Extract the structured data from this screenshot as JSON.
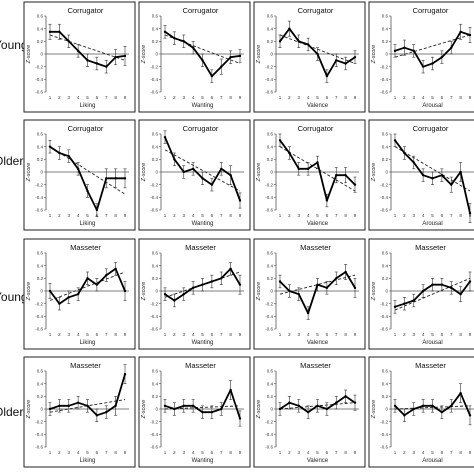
{
  "row_labels": [
    "Young",
    "Older",
    "Young",
    "Older"
  ],
  "chart_data": [
    {
      "type": "line",
      "title": "Corrugator",
      "xlabel": "Liking",
      "ylabel": "Z-score",
      "categories": [
        1,
        2,
        3,
        4,
        5,
        6,
        7,
        8,
        9
      ],
      "yticks": [
        "0.6",
        "0.4",
        "0.2",
        "0",
        "-0.2",
        "-0.4",
        "-0.6"
      ],
      "ylim": [
        -0.6,
        0.6
      ],
      "values": [
        0.35,
        0.35,
        0.2,
        0.05,
        -0.1,
        -0.15,
        -0.2,
        -0.05,
        -0.03
      ],
      "errors": [
        0.12,
        0.12,
        0.1,
        0.1,
        0.1,
        0.1,
        0.1,
        0.12,
        0.15
      ],
      "trend": [
        0.3,
        -0.1
      ]
    },
    {
      "type": "line",
      "title": "Corrugator",
      "xlabel": "Wanting",
      "ylabel": "Z-score",
      "categories": [
        1,
        2,
        3,
        4,
        5,
        6,
        7,
        8,
        9
      ],
      "yticks": [
        "0.6",
        "0.4",
        "0.2",
        "0",
        "-0.2",
        "-0.4",
        "-0.6"
      ],
      "ylim": [
        -0.6,
        0.6
      ],
      "values": [
        0.35,
        0.25,
        0.2,
        0.1,
        -0.1,
        -0.35,
        -0.2,
        -0.05,
        -0.03
      ],
      "errors": [
        0.1,
        0.1,
        0.1,
        0.1,
        0.1,
        0.1,
        0.12,
        0.1,
        0.1
      ],
      "trend": [
        0.3,
        -0.15
      ]
    },
    {
      "type": "line",
      "title": "Corrugator",
      "xlabel": "Valence",
      "ylabel": "Z-score",
      "categories": [
        1,
        2,
        3,
        4,
        5,
        6,
        7,
        8,
        9
      ],
      "yticks": [
        "0.6",
        "0.4",
        "0.2",
        "0",
        "-0.2",
        "-0.4",
        "-0.6"
      ],
      "ylim": [
        -0.6,
        0.6
      ],
      "values": [
        0.2,
        0.4,
        0.2,
        0.15,
        0.0,
        -0.35,
        -0.1,
        -0.15,
        -0.05
      ],
      "errors": [
        0.1,
        0.12,
        0.1,
        0.1,
        0.1,
        0.1,
        0.1,
        0.1,
        0.1
      ],
      "trend": [
        0.3,
        -0.15
      ]
    },
    {
      "type": "line",
      "title": "Corrugator",
      "xlabel": "Arousal",
      "ylabel": "Z-score",
      "categories": [
        1,
        2,
        3,
        4,
        5,
        6,
        7,
        8,
        9
      ],
      "yticks": [
        "0.6",
        "0.4",
        "0.2",
        "0",
        "-0.2",
        "-0.4",
        "-0.6"
      ],
      "ylim": [
        -0.6,
        0.6
      ],
      "values": [
        0.05,
        0.1,
        0.05,
        -0.2,
        -0.15,
        -0.05,
        0.1,
        0.35,
        0.3
      ],
      "errors": [
        0.1,
        0.12,
        0.1,
        0.1,
        0.1,
        0.1,
        0.1,
        0.12,
        0.12
      ],
      "trend": [
        -0.05,
        0.3
      ]
    },
    {
      "type": "line",
      "title": "Corrugator",
      "xlabel": "Liking",
      "ylabel": "Z-score",
      "categories": [
        1,
        2,
        3,
        4,
        5,
        6,
        7,
        8,
        9
      ],
      "yticks": [
        "0.6",
        "0.4",
        "0.2",
        "0",
        "-0.2",
        "-0.4",
        "-0.6"
      ],
      "ylim": [
        -0.6,
        0.6
      ],
      "values": [
        0.4,
        0.3,
        0.25,
        0.05,
        -0.3,
        -0.6,
        -0.1,
        -0.1,
        -0.1
      ],
      "errors": [
        0.1,
        0.1,
        0.1,
        0.1,
        0.1,
        0.1,
        0.15,
        0.15,
        0.15
      ],
      "trend": [
        0.4,
        -0.35
      ]
    },
    {
      "type": "line",
      "title": "Corrugator",
      "xlabel": "Wanting",
      "ylabel": "Z-score",
      "categories": [
        1,
        2,
        3,
        4,
        5,
        6,
        7,
        8,
        9
      ],
      "yticks": [
        "0.6",
        "0.4",
        "0.2",
        "0",
        "-0.2",
        "-0.4",
        "-0.6"
      ],
      "ylim": [
        -0.6,
        0.6
      ],
      "values": [
        0.55,
        0.2,
        0.0,
        0.05,
        -0.1,
        -0.2,
        0.05,
        -0.05,
        -0.45
      ],
      "errors": [
        0.1,
        0.1,
        0.1,
        0.1,
        0.1,
        0.1,
        0.1,
        0.15,
        0.12
      ],
      "trend": [
        0.35,
        -0.3
      ]
    },
    {
      "type": "line",
      "title": "Corrugator",
      "xlabel": "Valence",
      "ylabel": "Z-score",
      "categories": [
        1,
        2,
        3,
        4,
        5,
        6,
        7,
        8,
        9
      ],
      "yticks": [
        "0.6",
        "0.4",
        "0.2",
        "0",
        "-0.2",
        "-0.4",
        "-0.6"
      ],
      "ylim": [
        -0.6,
        0.6
      ],
      "values": [
        0.5,
        0.3,
        0.05,
        0.05,
        0.15,
        -0.45,
        -0.05,
        -0.05,
        -0.2
      ],
      "errors": [
        0.1,
        0.1,
        0.1,
        0.1,
        0.1,
        0.1,
        0.12,
        0.12,
        0.12
      ],
      "trend": [
        0.4,
        -0.3
      ]
    },
    {
      "type": "line",
      "title": "Corrugator",
      "xlabel": "Arousal",
      "ylabel": "Z-score",
      "categories": [
        1,
        2,
        3,
        4,
        5,
        6,
        7,
        8,
        9
      ],
      "yticks": [
        "0.6",
        "0.4",
        "0.2",
        "0",
        "-0.2",
        "-0.4",
        "-0.6"
      ],
      "ylim": [
        -0.6,
        0.6
      ],
      "values": [
        0.5,
        0.3,
        0.15,
        -0.05,
        -0.1,
        -0.05,
        -0.2,
        0.0,
        -0.65
      ],
      "errors": [
        0.1,
        0.1,
        0.1,
        0.1,
        0.1,
        0.1,
        0.12,
        0.15,
        0.15
      ],
      "trend": [
        0.4,
        -0.3
      ]
    },
    {
      "type": "line",
      "title": "Masseter",
      "xlabel": "Liking",
      "ylabel": "Z-score",
      "categories": [
        1,
        2,
        3,
        4,
        5,
        6,
        7,
        8,
        9
      ],
      "yticks": [
        "0.6",
        "0.4",
        "0.2",
        "0",
        "-0.2",
        "-0.4",
        "-0.6"
      ],
      "ylim": [
        -0.6,
        0.6
      ],
      "values": [
        0.0,
        -0.2,
        -0.1,
        -0.05,
        0.2,
        0.1,
        0.25,
        0.35,
        0.0
      ],
      "errors": [
        0.12,
        0.1,
        0.1,
        0.1,
        0.1,
        0.1,
        0.1,
        0.1,
        0.15
      ],
      "trend": [
        -0.15,
        0.3
      ]
    },
    {
      "type": "line",
      "title": "Masseter",
      "xlabel": "Wanting",
      "ylabel": "Z-score",
      "categories": [
        1,
        2,
        3,
        4,
        5,
        6,
        7,
        8,
        9
      ],
      "yticks": [
        "0.6",
        "0.4",
        "0.2",
        "0",
        "-0.2",
        "-0.4",
        "-0.6"
      ],
      "ylim": [
        -0.6,
        0.6
      ],
      "values": [
        -0.05,
        -0.15,
        -0.05,
        0.05,
        0.1,
        0.15,
        0.2,
        0.35,
        0.1
      ],
      "errors": [
        0.1,
        0.1,
        0.1,
        0.1,
        0.1,
        0.1,
        0.1,
        0.1,
        0.15
      ],
      "trend": [
        -0.1,
        0.3
      ]
    },
    {
      "type": "line",
      "title": "Masseter",
      "xlabel": "Valence",
      "ylabel": "Z-score",
      "categories": [
        1,
        2,
        3,
        4,
        5,
        6,
        7,
        8,
        9
      ],
      "yticks": [
        "0.6",
        "0.4",
        "0.2",
        "0",
        "-0.2",
        "-0.4",
        "-0.6"
      ],
      "ylim": [
        -0.6,
        0.6
      ],
      "values": [
        0.15,
        0.0,
        -0.05,
        -0.35,
        0.1,
        0.05,
        0.2,
        0.3,
        0.05
      ],
      "errors": [
        0.1,
        0.1,
        0.1,
        0.1,
        0.1,
        0.1,
        0.1,
        0.12,
        0.15
      ],
      "trend": [
        -0.05,
        0.25
      ]
    },
    {
      "type": "line",
      "title": "Masseter",
      "xlabel": "Arousal",
      "ylabel": "Z-score",
      "categories": [
        1,
        2,
        3,
        4,
        5,
        6,
        7,
        8,
        9
      ],
      "yticks": [
        "0.6",
        "0.4",
        "0.2",
        "0",
        "-0.2",
        "-0.4",
        "-0.6"
      ],
      "ylim": [
        -0.6,
        0.6
      ],
      "values": [
        -0.25,
        -0.2,
        -0.15,
        0.0,
        0.1,
        0.1,
        0.05,
        -0.05,
        0.15
      ],
      "errors": [
        0.1,
        0.1,
        0.1,
        0.1,
        0.1,
        0.1,
        0.1,
        0.12,
        0.15
      ],
      "trend": [
        -0.3,
        0.2
      ]
    },
    {
      "type": "line",
      "title": "Masseter",
      "xlabel": "Liking",
      "ylabel": "Z-score",
      "categories": [
        1,
        2,
        3,
        4,
        5,
        6,
        7,
        8,
        9
      ],
      "yticks": [
        "0.6",
        "0.4",
        "0.2",
        "0",
        "-0.2",
        "-0.4",
        "-0.6"
      ],
      "ylim": [
        -0.6,
        0.6
      ],
      "values": [
        0.0,
        0.05,
        0.05,
        0.1,
        0.05,
        -0.1,
        -0.05,
        0.05,
        0.55
      ],
      "errors": [
        0.1,
        0.1,
        0.1,
        0.1,
        0.1,
        0.1,
        0.1,
        0.15,
        0.15
      ],
      "trend": [
        -0.05,
        0.15
      ]
    },
    {
      "type": "line",
      "title": "Masseter",
      "xlabel": "Wanting",
      "ylabel": "Z-score",
      "categories": [
        1,
        2,
        3,
        4,
        5,
        6,
        7,
        8,
        9
      ],
      "yticks": [
        "0.6",
        "0.4",
        "0.2",
        "0",
        "-0.2",
        "-0.4",
        "-0.6"
      ],
      "ylim": [
        -0.6,
        0.6
      ],
      "values": [
        0.05,
        0.0,
        0.05,
        0.05,
        -0.05,
        -0.05,
        0.0,
        0.3,
        -0.15
      ],
      "errors": [
        0.1,
        0.1,
        0.1,
        0.1,
        0.1,
        0.1,
        0.1,
        0.15,
        0.12
      ],
      "trend": [
        0.0,
        0.05
      ]
    },
    {
      "type": "line",
      "title": "Masseter",
      "xlabel": "Valence",
      "ylabel": "Z-score",
      "categories": [
        1,
        2,
        3,
        4,
        5,
        6,
        7,
        8,
        9
      ],
      "yticks": [
        "0.6",
        "0.4",
        "0.2",
        "0",
        "-0.2",
        "-0.4",
        "-0.6"
      ],
      "ylim": [
        -0.6,
        0.6
      ],
      "values": [
        0.0,
        0.1,
        0.05,
        -0.05,
        0.05,
        0.0,
        0.1,
        0.2,
        0.1
      ],
      "errors": [
        0.1,
        0.1,
        0.1,
        0.1,
        0.1,
        0.1,
        0.1,
        0.1,
        0.12
      ],
      "trend": [
        0.0,
        0.1
      ]
    },
    {
      "type": "line",
      "title": "Masseter",
      "xlabel": "Arousal",
      "ylabel": "Z-score",
      "categories": [
        1,
        2,
        3,
        4,
        5,
        6,
        7,
        8,
        9
      ],
      "yticks": [
        "0.6",
        "0.4",
        "0.2",
        "0",
        "-0.2",
        "-0.4",
        "-0.6"
      ],
      "ylim": [
        -0.6,
        0.6
      ],
      "values": [
        0.05,
        -0.1,
        0.0,
        0.05,
        0.05,
        -0.05,
        0.05,
        0.25,
        -0.1
      ],
      "errors": [
        0.1,
        0.1,
        0.1,
        0.1,
        0.1,
        0.1,
        0.1,
        0.15,
        0.15
      ],
      "trend": [
        0.0,
        0.05
      ]
    }
  ]
}
